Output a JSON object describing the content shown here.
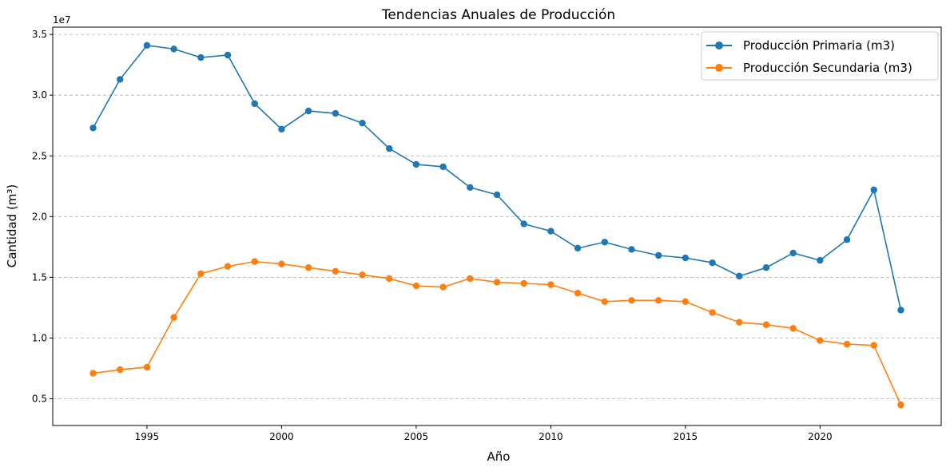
{
  "chart_data": {
    "type": "line",
    "title": "Tendencias Anuales de Producción",
    "xlabel": "Año",
    "ylabel": "Cantidad (m³)",
    "y_offset_label": "1e7",
    "y_scale": 10000000,
    "xlim": [
      1991.5,
      2024.5
    ],
    "ylim": [
      0.28,
      3.56
    ],
    "x_ticks": [
      1995,
      2000,
      2005,
      2010,
      2015,
      2020
    ],
    "y_ticks": [
      0.5,
      1.0,
      1.5,
      2.0,
      2.5,
      3.0,
      3.5
    ],
    "y_tick_labels": [
      "0.5",
      "1.0",
      "1.5",
      "2.0",
      "2.5",
      "3.0",
      "3.5"
    ],
    "grid": "y-dashed",
    "legend_position": "top-right",
    "x": [
      1993,
      1994,
      1995,
      1996,
      1997,
      1998,
      1999,
      2000,
      2001,
      2002,
      2003,
      2004,
      2005,
      2006,
      2007,
      2008,
      2009,
      2010,
      2011,
      2012,
      2013,
      2014,
      2015,
      2016,
      2017,
      2018,
      2019,
      2020,
      2021,
      2022,
      2023
    ],
    "series": [
      {
        "name": "Producción Primaria (m3)",
        "color": "#1f77b4",
        "values": [
          2.73,
          3.13,
          3.41,
          3.38,
          3.31,
          3.33,
          2.93,
          2.72,
          2.87,
          2.85,
          2.77,
          2.56,
          2.43,
          2.41,
          2.24,
          2.18,
          1.94,
          1.88,
          1.74,
          1.79,
          1.73,
          1.68,
          1.66,
          1.62,
          1.51,
          1.58,
          1.7,
          1.64,
          1.81,
          2.22,
          1.23
        ]
      },
      {
        "name": "Producción Secundaria (m3)",
        "color": "#ff7f0e",
        "values": [
          0.71,
          0.74,
          0.76,
          1.17,
          1.53,
          1.59,
          1.63,
          1.61,
          1.58,
          1.55,
          1.52,
          1.49,
          1.43,
          1.42,
          1.49,
          1.46,
          1.45,
          1.44,
          1.37,
          1.3,
          1.31,
          1.31,
          1.3,
          1.21,
          1.13,
          1.11,
          1.08,
          0.98,
          0.95,
          0.94,
          0.45
        ]
      }
    ]
  }
}
